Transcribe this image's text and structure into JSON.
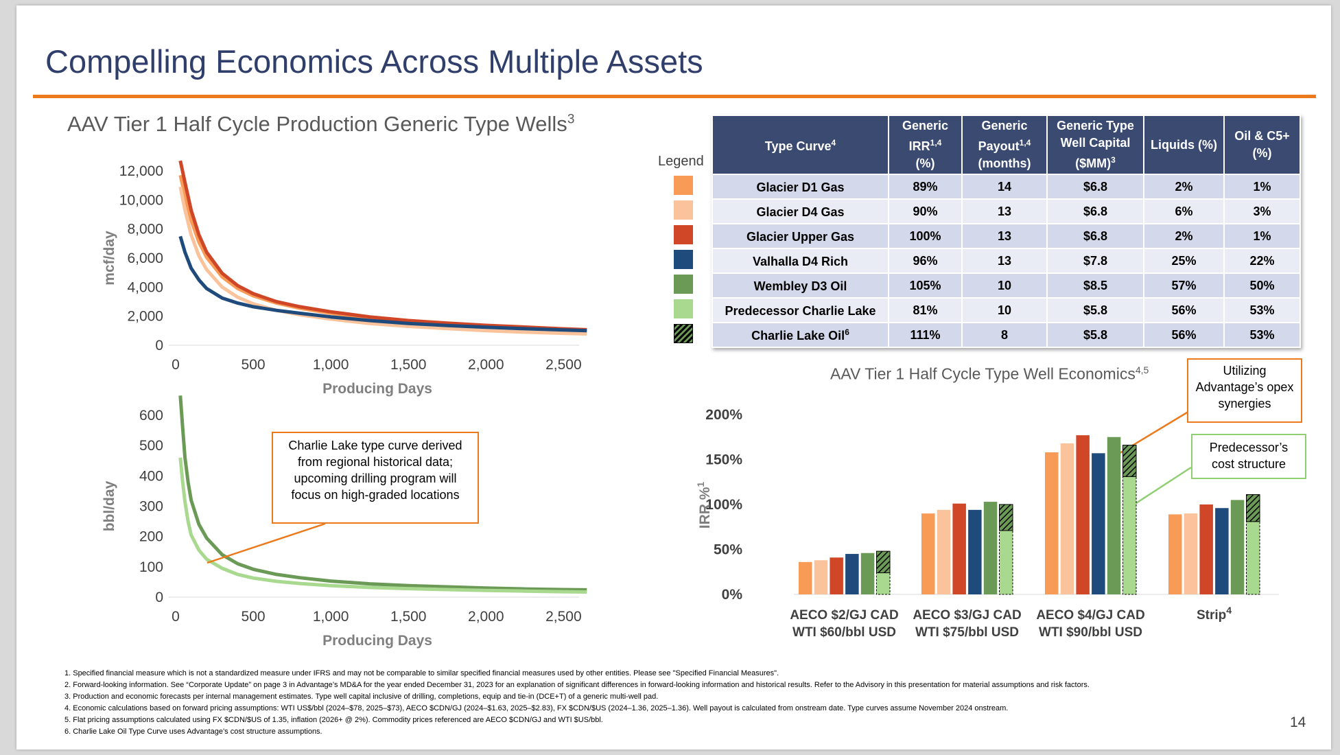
{
  "title": "Compelling Economics Across Multiple Assets",
  "page_number": "14",
  "top_left_chart": {
    "title": "AAV Tier 1 Half Cycle Production Generic Type Wells",
    "title_sup": "3"
  },
  "legend_title": "Legend",
  "table": {
    "headers": [
      {
        "text": "Type Curve",
        "sup": "4"
      },
      {
        "text": "Generic IRR",
        "sup": "1,4",
        "text2": "(%)"
      },
      {
        "text": "Generic Payout",
        "sup": "1,4",
        "text2": "(months)"
      },
      {
        "text": "Generic Type Well Capital ($MM)",
        "sup": "3"
      },
      {
        "text": "Liquids (%)",
        "sup": ""
      },
      {
        "text": "Oil & C5+ (%)",
        "sup": ""
      }
    ],
    "rows": [
      {
        "name": "Glacier D1 Gas",
        "sup": "",
        "irr": "89%",
        "payout": "14",
        "capital": "$6.8",
        "liquids": "2%",
        "oil": "1%",
        "color": "#f79b57",
        "hatched": false
      },
      {
        "name": "Glacier D4 Gas",
        "sup": "",
        "irr": "90%",
        "payout": "13",
        "capital": "$6.8",
        "liquids": "6%",
        "oil": "3%",
        "color": "#fbc39b",
        "hatched": false
      },
      {
        "name": "Glacier Upper Gas",
        "sup": "",
        "irr": "100%",
        "payout": "13",
        "capital": "$6.8",
        "liquids": "2%",
        "oil": "1%",
        "color": "#cf4727",
        "hatched": false
      },
      {
        "name": "Valhalla D4 Rich",
        "sup": "",
        "irr": "96%",
        "payout": "13",
        "capital": "$7.8",
        "liquids": "25%",
        "oil": "22%",
        "color": "#1f4a7c",
        "hatched": false
      },
      {
        "name": "Wembley D3 Oil",
        "sup": "",
        "irr": "105%",
        "payout": "10",
        "capital": "$8.5",
        "liquids": "57%",
        "oil": "50%",
        "color": "#6b9a57",
        "hatched": false
      },
      {
        "name": "Predecessor Charlie Lake",
        "sup": "",
        "irr": "81%",
        "payout": "10",
        "capital": "$5.8",
        "liquids": "56%",
        "oil": "53%",
        "color": "#a9d88f",
        "hatched": false
      },
      {
        "name": "Charlie Lake Oil",
        "sup": "6",
        "irr": "111%",
        "payout": "8",
        "capital": "$5.8",
        "liquids": "56%",
        "oil": "53%",
        "color": "#6b9a57",
        "hatched": true
      }
    ]
  },
  "irr_chart_title": "AAV Tier 1 Half Cycle Type Well Economics",
  "irr_chart_title_sup": "4,5",
  "callouts": {
    "charlie_lake": "Charlie Lake type curve derived from regional historical data; upcoming drilling program will focus on high-graded locations",
    "opex": "Utilizing Advantage’s opex synergies",
    "predecessor": "Predecessor’s cost structure"
  },
  "footnotes": [
    "1. Specified financial measure which is not a standardized measure under IFRS and may not be comparable to similar specified financial measures used by other entities. Please see \"Specified Financial Measures\".",
    "2. Forward-looking information. See “Corporate Update” on page 3 in Advantage’s MD&A for the year ended December 31, 2023 for an explanation of significant differences in forward-looking information and historical results. Refer to the Advisory in this presentation for material assumptions and risk factors.",
    "3. Production and economic forecasts per internal management estimates. Type well capital inclusive of drilling, completions, equip and tie-in (DCE+T) of a generic multi-well pad.",
    "4. Economic calculations based on forward pricing assumptions: WTI US$/bbl (2024–$78, 2025–$73), AECO $CDN/GJ (2024–$1.63, 2025–$2.83), FX $CDN/$US (2024–1.36, 2025–1.36). Well payout is calculated from onstream date. Type curves assume November 2024 onstream.",
    "5. Flat pricing assumptions calculated using FX $CDN/$US of 1.35, inflation (2026+ @ 2%). Commodity prices referenced are AECO $CDN/GJ and WTI $US/bbl.",
    "6. Charlie Lake Oil Type Curve uses Advantage’s cost structure assumptions."
  ],
  "chart_data": [
    {
      "type": "line",
      "title": "AAV Tier 1 Half Cycle Production Generic Type Wells",
      "xlabel": "Producing Days",
      "ylabel": "mcf/day",
      "xlim": [
        0,
        2600
      ],
      "ylim": [
        0,
        12000
      ],
      "xticks": [
        "0",
        "500",
        "1,000",
        "1,500",
        "2,000",
        "2,500"
      ],
      "yticks": [
        "0",
        "2,000",
        "4,000",
        "6,000",
        "8,000",
        "10,000",
        "12,000"
      ],
      "x": [
        30,
        60,
        100,
        150,
        200,
        300,
        400,
        500,
        650,
        800,
        1000,
        1250,
        1500,
        1750,
        2000,
        2250,
        2500,
        2650
      ],
      "series": [
        {
          "color": "#f79b57",
          "values": [
            11700,
            10300,
            8600,
            7100,
            6050,
            4700,
            3900,
            3400,
            2900,
            2550,
            2200,
            1850,
            1600,
            1450,
            1300,
            1200,
            1080,
            1030
          ]
        },
        {
          "color": "#fbc39b",
          "values": [
            10900,
            9300,
            7600,
            6150,
            5200,
            4000,
            3300,
            2850,
            2400,
            2100,
            1800,
            1500,
            1300,
            1150,
            1000,
            900,
            820,
            780
          ]
        },
        {
          "color": "#cf4727",
          "values": [
            12700,
            11200,
            9300,
            7600,
            6400,
            4950,
            4100,
            3550,
            3000,
            2650,
            2300,
            1950,
            1700,
            1520,
            1370,
            1250,
            1130,
            1070
          ]
        },
        {
          "color": "#1f4a7c",
          "values": [
            7500,
            6400,
            5300,
            4500,
            3900,
            3250,
            2900,
            2650,
            2400,
            2200,
            1950,
            1700,
            1500,
            1360,
            1240,
            1140,
            1050,
            1000
          ]
        }
      ]
    },
    {
      "type": "line",
      "xlabel": "Producing Days",
      "ylabel": "bbl/day",
      "xlim": [
        0,
        2600
      ],
      "ylim": [
        0,
        600
      ],
      "xticks": [
        "0",
        "500",
        "1,000",
        "1,500",
        "2,000",
        "2,500"
      ],
      "yticks": [
        "0",
        "100",
        "200",
        "300",
        "400",
        "500",
        "600"
      ],
      "x": [
        30,
        45,
        60,
        80,
        100,
        150,
        200,
        300,
        400,
        500,
        650,
        800,
        1000,
        1250,
        1500,
        1750,
        2000,
        2250,
        2500,
        2650
      ],
      "series": [
        {
          "color": "#6b9a57",
          "values": [
            665,
            560,
            460,
            380,
            320,
            240,
            195,
            140,
            110,
            92,
            75,
            64,
            53,
            44,
            38,
            34,
            30,
            27,
            25,
            24
          ]
        },
        {
          "color": "#a9d88f",
          "values": [
            460,
            380,
            315,
            250,
            205,
            155,
            125,
            95,
            75,
            63,
            52,
            45,
            38,
            32,
            28,
            25,
            22,
            20,
            18,
            17
          ]
        }
      ]
    },
    {
      "type": "bar",
      "title": "AAV Tier 1 Half Cycle Type Well Economics",
      "ylabel": "IRR %",
      "ylabel_sup": "1",
      "ylim": [
        0,
        200
      ],
      "yticks": [
        "0%",
        "50%",
        "100%",
        "150%",
        "200%"
      ],
      "categories": [
        {
          "line1": "AECO $2/GJ CAD",
          "line2": "WTI $60/bbl USD",
          "sup": ""
        },
        {
          "line1": "AECO $3/GJ CAD",
          "line2": "WTI $75/bbl USD",
          "sup": ""
        },
        {
          "line1": "AECO $4/GJ CAD",
          "line2": "WTI $90/bbl USD",
          "sup": ""
        },
        {
          "line1": "Strip",
          "line2": "",
          "sup": "4"
        }
      ],
      "series": [
        {
          "color": "#f79b57",
          "values": [
            36,
            90,
            158,
            89
          ]
        },
        {
          "color": "#fbc39b",
          "values": [
            38,
            94,
            168,
            90
          ]
        },
        {
          "color": "#cf4727",
          "values": [
            41,
            101,
            177,
            100
          ]
        },
        {
          "color": "#1f4a7c",
          "values": [
            45,
            94,
            157,
            96
          ]
        },
        {
          "color": "#6b9a57",
          "values": [
            46,
            103,
            175,
            105
          ]
        },
        {
          "color": "#a9d88f",
          "values": [
            24,
            71,
            131,
            81
          ],
          "hatched_total": [
            48,
            100,
            166,
            111
          ]
        }
      ]
    }
  ]
}
